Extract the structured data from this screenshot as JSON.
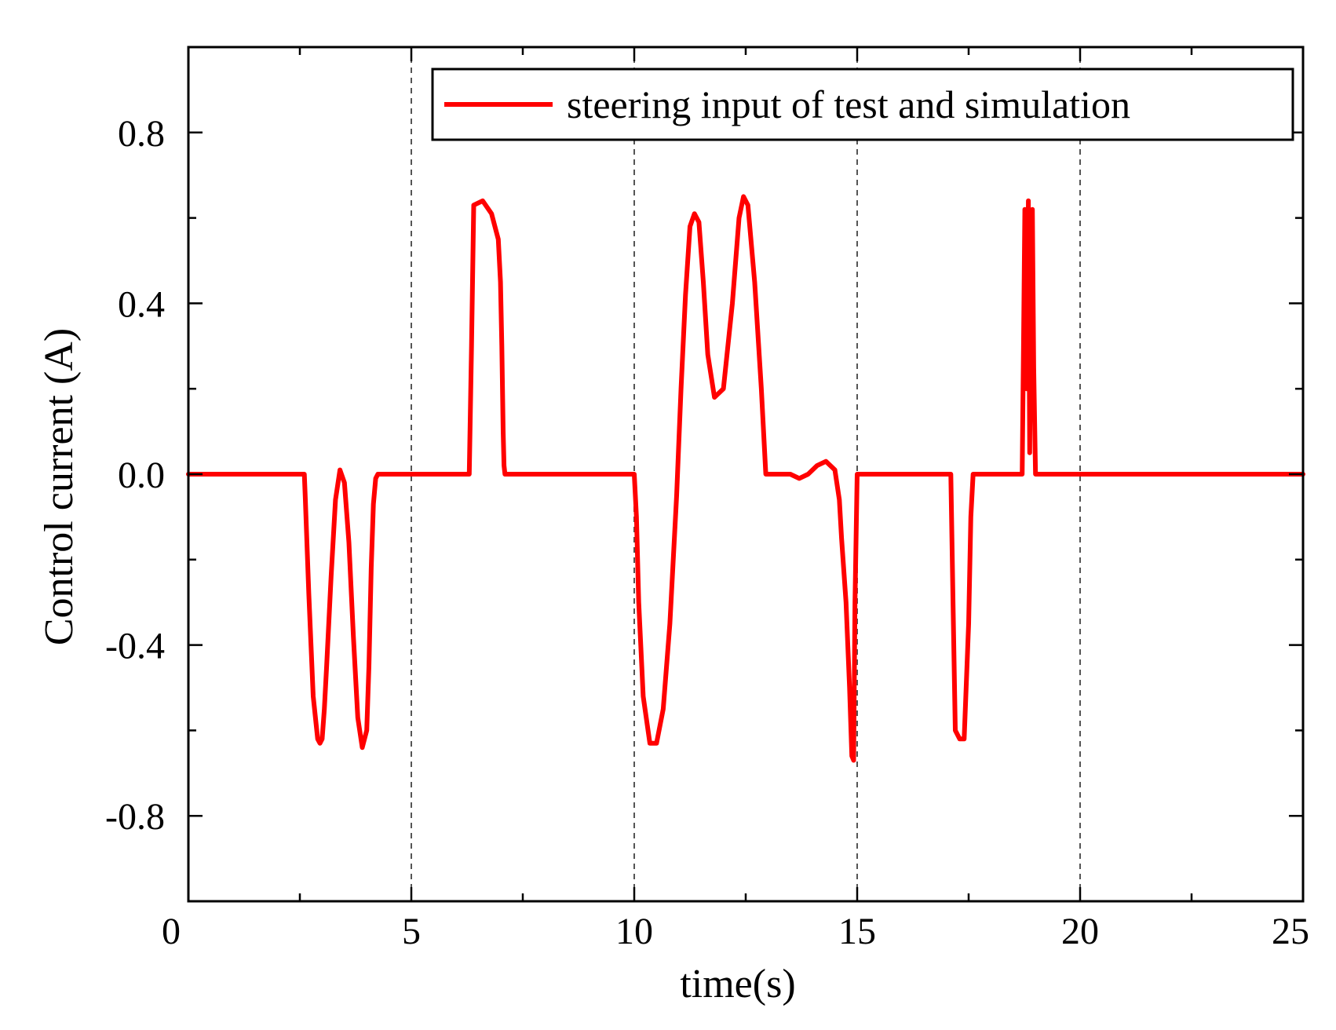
{
  "chart_data": {
    "type": "line",
    "title": "",
    "xlabel": "time(s)",
    "ylabel": "Control current (A)",
    "xlim": [
      0,
      25
    ],
    "ylim": [
      -1.0,
      1.0
    ],
    "xticks": [
      0,
      5,
      10,
      15,
      20,
      25
    ],
    "xtick_labels": [
      "0",
      "5",
      "10",
      "15",
      "20",
      "25"
    ],
    "yticks": [
      0.8,
      0.4,
      0.0,
      -0.4,
      -0.8
    ],
    "ytick_labels": [
      "0.8",
      "0.4",
      "0.0",
      "-0.4",
      "-0.8"
    ],
    "grid": "dashed vertical lines at x = 5, 10, 15, 20",
    "vlines": [
      5,
      10,
      15,
      20
    ],
    "legend_position": "top-right",
    "colors": {
      "series": "#ff0000",
      "axis": "#000000",
      "grid": "#555555"
    },
    "series": [
      {
        "name": "steering input of test and simulation",
        "x": [
          0,
          2.6,
          2.62,
          2.7,
          2.8,
          2.9,
          2.95,
          3.0,
          3.05,
          3.1,
          3.2,
          3.3,
          3.4,
          3.5,
          3.6,
          3.7,
          3.8,
          3.9,
          4.0,
          4.05,
          4.1,
          4.15,
          4.2,
          4.25,
          4.3,
          4.4,
          4.5,
          4.6,
          5.5,
          6.3,
          6.35,
          6.4,
          6.6,
          6.8,
          6.95,
          7.0,
          7.03,
          7.06,
          7.08,
          7.1,
          10.0,
          10.05,
          10.1,
          10.2,
          10.35,
          10.5,
          10.65,
          10.8,
          10.95,
          11.05,
          11.15,
          11.25,
          11.35,
          11.45,
          11.55,
          11.65,
          11.8,
          12.0,
          12.2,
          12.35,
          12.45,
          12.55,
          12.7,
          12.85,
          12.95,
          13.5,
          13.7,
          13.9,
          14.1,
          14.3,
          14.5,
          14.6,
          14.65,
          14.75,
          14.83,
          14.88,
          14.92,
          14.95,
          15.0,
          15.1,
          17.1,
          17.15,
          17.2,
          17.3,
          17.4,
          17.5,
          17.55,
          17.6,
          17.7,
          18.7,
          18.73,
          18.76,
          18.8,
          18.84,
          18.87,
          18.9,
          18.93,
          18.96,
          19.0,
          25
        ],
        "values": [
          0,
          0,
          -0.05,
          -0.28,
          -0.52,
          -0.62,
          -0.63,
          -0.62,
          -0.55,
          -0.45,
          -0.24,
          -0.06,
          0.01,
          -0.02,
          -0.16,
          -0.38,
          -0.57,
          -0.64,
          -0.6,
          -0.45,
          -0.22,
          -0.07,
          -0.01,
          0,
          0,
          0,
          0,
          0,
          0,
          0,
          0.3,
          0.63,
          0.64,
          0.61,
          0.55,
          0.45,
          0.3,
          0.1,
          0.02,
          0,
          0,
          -0.1,
          -0.3,
          -0.52,
          -0.63,
          -0.63,
          -0.55,
          -0.35,
          -0.05,
          0.2,
          0.42,
          0.58,
          0.61,
          0.59,
          0.45,
          0.28,
          0.18,
          0.2,
          0.4,
          0.6,
          0.65,
          0.63,
          0.45,
          0.2,
          0.0,
          0,
          -0.01,
          0.0,
          0.02,
          0.03,
          0.01,
          -0.06,
          -0.15,
          -0.3,
          -0.5,
          -0.66,
          -0.67,
          -0.3,
          0,
          0,
          0,
          -0.3,
          -0.6,
          -0.62,
          -0.62,
          -0.35,
          -0.1,
          0,
          0,
          0,
          0.3,
          0.62,
          0.2,
          0.64,
          0.05,
          0.55,
          0.62,
          0.25,
          0,
          0
        ]
      }
    ]
  }
}
